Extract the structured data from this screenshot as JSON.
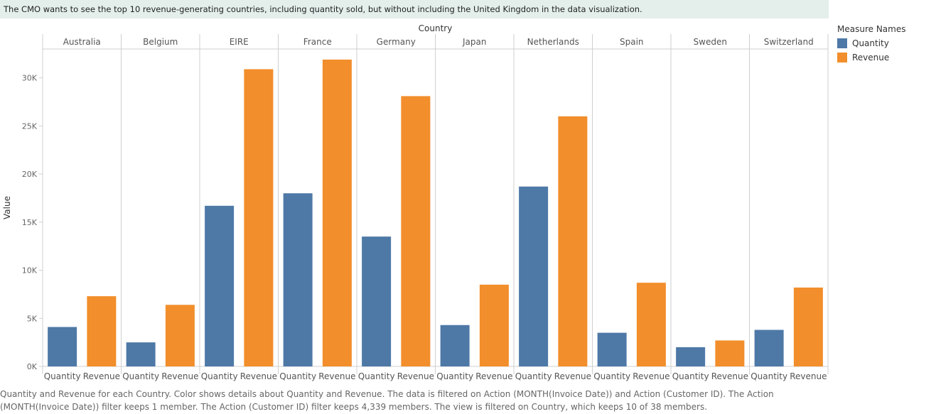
{
  "header": {
    "text": "The CMO wants to see the top 10 revenue-generating countries, including quantity sold, but without including the United Kingdom in the data visualization."
  },
  "legend": {
    "title": "Measure Names",
    "items": [
      {
        "label": "Quantity",
        "color": "#4e79a7"
      },
      {
        "label": "Revenue",
        "color": "#f28e2b"
      }
    ]
  },
  "chart_data": {
    "type": "bar",
    "title": "Country",
    "xlabel": "",
    "ylabel": "Value",
    "ylim": [
      0,
      33000
    ],
    "yticks": [
      0,
      5000,
      10000,
      15000,
      20000,
      25000,
      30000
    ],
    "ytick_labels": [
      "0K",
      "5K",
      "10K",
      "15K",
      "20K",
      "25K",
      "30K"
    ],
    "categories": [
      "Australia",
      "Belgium",
      "EIRE",
      "France",
      "Germany",
      "Japan",
      "Netherlands",
      "Spain",
      "Sweden",
      "Switzerland"
    ],
    "series": [
      {
        "name": "Quantity",
        "color": "#4e79a7",
        "values": [
          4100,
          2500,
          16700,
          18000,
          13500,
          4300,
          18700,
          3500,
          2000,
          3800
        ]
      },
      {
        "name": "Revenue",
        "color": "#f28e2b",
        "values": [
          7300,
          6400,
          30900,
          31900,
          28100,
          8500,
          26000,
          8700,
          2700,
          8200
        ]
      }
    ],
    "grid": false,
    "legend_position": "right"
  },
  "caption": {
    "text": "Quantity and Revenue for each Country.  Color shows details about Quantity and Revenue. The data is filtered on Action (MONTH(Invoice Date)) and Action (Customer ID). The Action (MONTH(Invoice Date)) filter keeps 1 member. The Action (Customer ID) filter keeps 4,339 members. The view is filtered on Country, which keeps 10 of 38 members."
  }
}
